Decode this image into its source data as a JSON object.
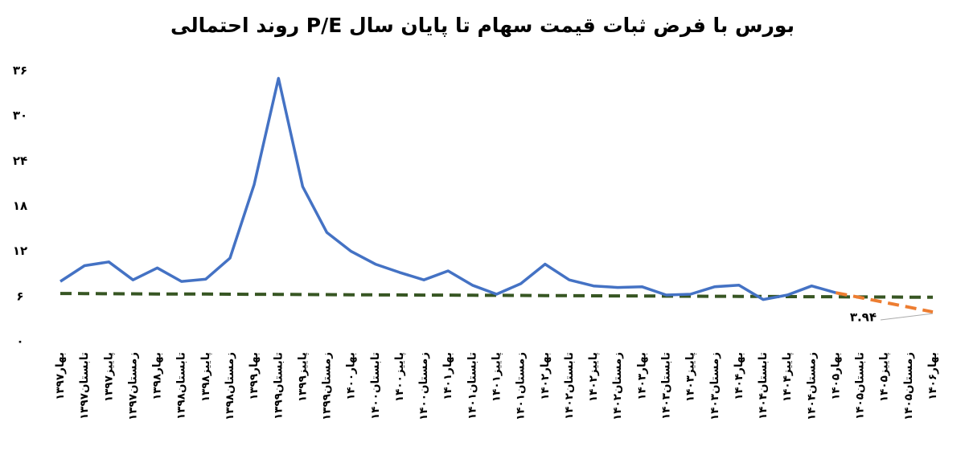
{
  "chart_data": {
    "type": "line",
    "title": "روند احتمالی P/E بورس با فرض ثبات قیمت سهام تا پایان سال",
    "categories": [
      "بهار۱۳۹۷",
      "تابستان۱۳۹۷",
      "پاییز۱۳۹۷",
      "زمستان۱۳۹۷",
      "بهار۱۳۹۸",
      "تابستان۱۳۹۸",
      "پاییز۱۳۹۸",
      "زمستان۱۳۹۸",
      "بهار۱۳۹۹",
      "تابستان۱۳۹۹",
      "پاییز۱۳۹۹",
      "زمستان۱۳۹۹",
      "بهار۱۴۰۰",
      "تابستان۱۴۰۰",
      "پاییز۱۴۰۰",
      "زمستان۱۴۰۰",
      "بهار۱۴۰۱",
      "تابستان۱۴۰۱",
      "پاییز۱۴۰۱",
      "زمستان۱۴۰۱",
      "بهار۱۴۰۲",
      "تابستان۱۴۰۲",
      "پاییز۱۴۰۲",
      "زمستان۱۴۰۲",
      "بهار۱۴۰۳",
      "تابستان۱۴۰۳",
      "پاییز۱۴۰۳",
      "زمستان۱۴۰۳",
      "بهار۱۴۰۴",
      "تابستان۱۴۰۴",
      "پاییز۱۴۰۴",
      "زمستان۱۴۰۴",
      "بهار۱۴۰۵",
      "تابستان۱۴۰۵",
      "پاییز۱۴۰۵",
      "زمستان۱۴۰۵",
      "بهار۱۴۰۶"
    ],
    "series": [
      {
        "color": "#4472c4",
        "dash": false,
        "values": [
          8.0,
          10.1,
          10.6,
          8.2,
          9.8,
          8.0,
          8.3,
          11.1,
          20.9,
          35.0,
          20.6,
          14.5,
          12.0,
          10.3,
          9.2,
          8.2,
          9.4,
          7.5,
          6.3,
          7.7,
          10.3,
          8.2,
          7.4,
          7.2,
          7.3,
          6.2,
          6.3,
          7.3,
          7.5,
          5.6,
          6.2,
          7.4,
          6.5,
          null,
          null,
          null,
          null
        ]
      },
      {
        "color": "#ed7d31",
        "dash": true,
        "values": [
          null,
          null,
          null,
          null,
          null,
          null,
          null,
          null,
          null,
          null,
          null,
          null,
          null,
          null,
          null,
          null,
          null,
          null,
          null,
          null,
          null,
          null,
          null,
          null,
          null,
          null,
          null,
          null,
          null,
          null,
          null,
          null,
          6.5,
          5.86,
          5.22,
          4.58,
          3.94
        ],
        "value_labels": [
          null,
          null,
          null,
          null,
          null,
          null,
          null,
          null,
          null,
          null,
          null,
          null,
          null,
          null,
          null,
          null,
          null,
          null,
          null,
          null,
          null,
          null,
          null,
          null,
          null,
          null,
          null,
          null,
          null,
          null,
          null,
          null,
          null,
          null,
          null,
          null,
          "۳.۹۴"
        ]
      },
      {
        "color": "#375623",
        "dash": true,
        "values": [
          6.4,
          6.39,
          6.37,
          6.36,
          6.34,
          6.33,
          6.32,
          6.3,
          6.29,
          6.28,
          6.26,
          6.25,
          6.23,
          6.22,
          6.21,
          6.19,
          6.18,
          6.16,
          6.15,
          6.14,
          6.12,
          6.11,
          6.09,
          6.08,
          6.07,
          6.05,
          6.04,
          6.03,
          6.01,
          6.0,
          5.98,
          5.97,
          5.96,
          5.94,
          5.93,
          5.91,
          5.9
        ]
      }
    ],
    "ylim": [
      0,
      36
    ],
    "yticks": [
      {
        "value": 0,
        "label": "۰"
      },
      {
        "value": 6,
        "label": "۶"
      },
      {
        "value": 12,
        "label": "۱۲"
      },
      {
        "value": 18,
        "label": "۱۸"
      },
      {
        "value": 24,
        "label": "۲۴"
      },
      {
        "value": 30,
        "label": "۳۰"
      },
      {
        "value": 36,
        "label": "۳۶"
      }
    ],
    "grid": false
  }
}
